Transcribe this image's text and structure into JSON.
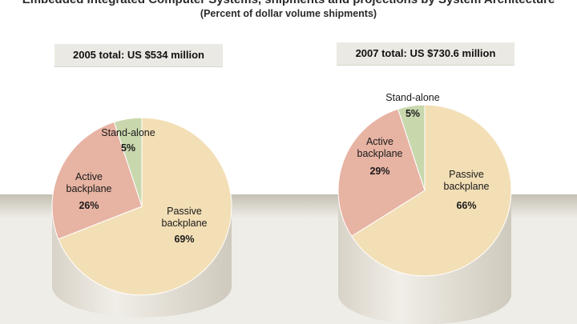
{
  "title_partial": "Embedded Integrated Computer Systems, shipments and projections by System Architecture",
  "subtitle": "(Percent of dollar volume shipments)",
  "chart_data": [
    {
      "type": "pie",
      "header": "2005 total: US $534 million",
      "slices": [
        {
          "name": "Passive backplane",
          "label_lines": [
            "Passive",
            "backplane"
          ],
          "value": 69,
          "value_label": "69%",
          "color": "#f3dfb6"
        },
        {
          "name": "Active backplane",
          "label_lines": [
            "Active",
            "backplane"
          ],
          "value": 26,
          "value_label": "26%",
          "color": "#e7b3a3"
        },
        {
          "name": "Stand-alone",
          "label_lines": [
            "Stand-alone"
          ],
          "value": 5,
          "value_label": "5%",
          "color": "#c9d7ad"
        }
      ]
    },
    {
      "type": "pie",
      "header": "2007 total: US $730.6 million",
      "slices": [
        {
          "name": "Passive backplane",
          "label_lines": [
            "Passive",
            "backplane"
          ],
          "value": 66,
          "value_label": "66%",
          "color": "#f3dfb6"
        },
        {
          "name": "Active backplane",
          "label_lines": [
            "Active",
            "backplane"
          ],
          "value": 29,
          "value_label": "29%",
          "color": "#e7b3a3"
        },
        {
          "name": "Stand-alone",
          "label_lines": [
            "Stand-alone"
          ],
          "value": 5,
          "value_label": "5%",
          "color": "#c9d7ad"
        }
      ]
    }
  ],
  "colors": {
    "shelf": "#cfcbbf",
    "cylinder_side": "#e6e2d9",
    "header_box": "#ebe9e3"
  }
}
